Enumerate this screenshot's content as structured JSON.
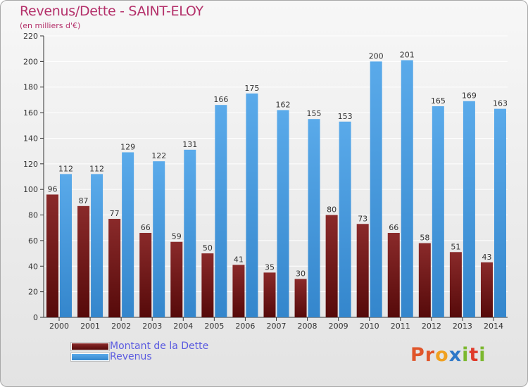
{
  "title": "Revenus/Dette - SAINT-ELOY",
  "subtitle": "(en milliers d'€)",
  "colors": {
    "title": "#b4306a",
    "dette_top": "#8a2a2a",
    "dette_bottom": "#560a0a",
    "revenus_top": "#5aaaea",
    "revenus_bottom": "#3486cc",
    "legend_text": "#5a5ae0"
  },
  "legend": [
    {
      "label": "Montant de la Dette",
      "swatch": "dette"
    },
    {
      "label": "Revenus",
      "swatch": "revenus"
    }
  ],
  "logo": {
    "text": "Proxiti",
    "letter_colors": [
      "#e0552a",
      "#e0552a",
      "#f0a020",
      "#2e78c8",
      "#7cb82e",
      "#e03a2a",
      "#7cb82e"
    ]
  },
  "chart_data": {
    "type": "bar",
    "title": "Revenus/Dette - SAINT-ELOY",
    "ylabel": "(en milliers d'€)",
    "categories": [
      "2000",
      "2001",
      "2002",
      "2003",
      "2004",
      "2005",
      "2006",
      "2007",
      "2008",
      "2009",
      "2010",
      "2011",
      "2012",
      "2013",
      "2014"
    ],
    "series": [
      {
        "name": "Montant de la Dette",
        "values": [
          96,
          87,
          77,
          66,
          59,
          50,
          41,
          35,
          30,
          80,
          73,
          66,
          58,
          51,
          43
        ]
      },
      {
        "name": "Revenus",
        "values": [
          112,
          112,
          129,
          122,
          131,
          166,
          175,
          162,
          155,
          153,
          200,
          201,
          165,
          169,
          163
        ]
      }
    ],
    "ylim": [
      0,
      220
    ],
    "yticks": [
      0,
      20,
      40,
      60,
      80,
      100,
      120,
      140,
      160,
      180,
      200,
      220
    ],
    "grid": "horizontal",
    "legend_position": "bottom-left"
  }
}
